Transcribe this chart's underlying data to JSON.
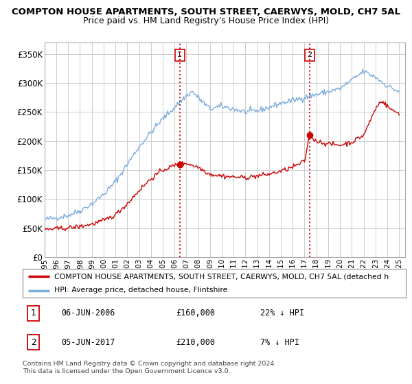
{
  "title": "COMPTON HOUSE APARTMENTS, SOUTH STREET, CAERWYS, MOLD, CH7 5AL",
  "subtitle": "Price paid vs. HM Land Registry's House Price Index (HPI)",
  "ylabel_ticks": [
    "£0",
    "£50K",
    "£100K",
    "£150K",
    "£200K",
    "£250K",
    "£300K",
    "£350K"
  ],
  "ytick_values": [
    0,
    50000,
    100000,
    150000,
    200000,
    250000,
    300000,
    350000
  ],
  "ylim": [
    0,
    370000
  ],
  "xlim_start": 1995.0,
  "xlim_end": 2025.5,
  "sale1_x": 2006.44,
  "sale1_y": 160000,
  "sale1_label": "1",
  "sale2_x": 2017.42,
  "sale2_y": 210000,
  "sale2_label": "2",
  "legend_red": "COMPTON HOUSE APARTMENTS, SOUTH STREET, CAERWYS, MOLD, CH7 5AL (detached h",
  "legend_blue": "HPI: Average price, detached house, Flintshire",
  "table_row1": [
    "1",
    "06-JUN-2006",
    "£160,000",
    "22% ↓ HPI"
  ],
  "table_row2": [
    "2",
    "05-JUN-2017",
    "£210,000",
    "7% ↓ HPI"
  ],
  "footnote": "Contains HM Land Registry data © Crown copyright and database right 2024.\nThis data is licensed under the Open Government Licence v3.0.",
  "red_color": "#cc0000",
  "blue_color": "#7aade0",
  "vline_color": "#cc0000",
  "background_color": "#ffffff",
  "grid_color": "#cccccc"
}
